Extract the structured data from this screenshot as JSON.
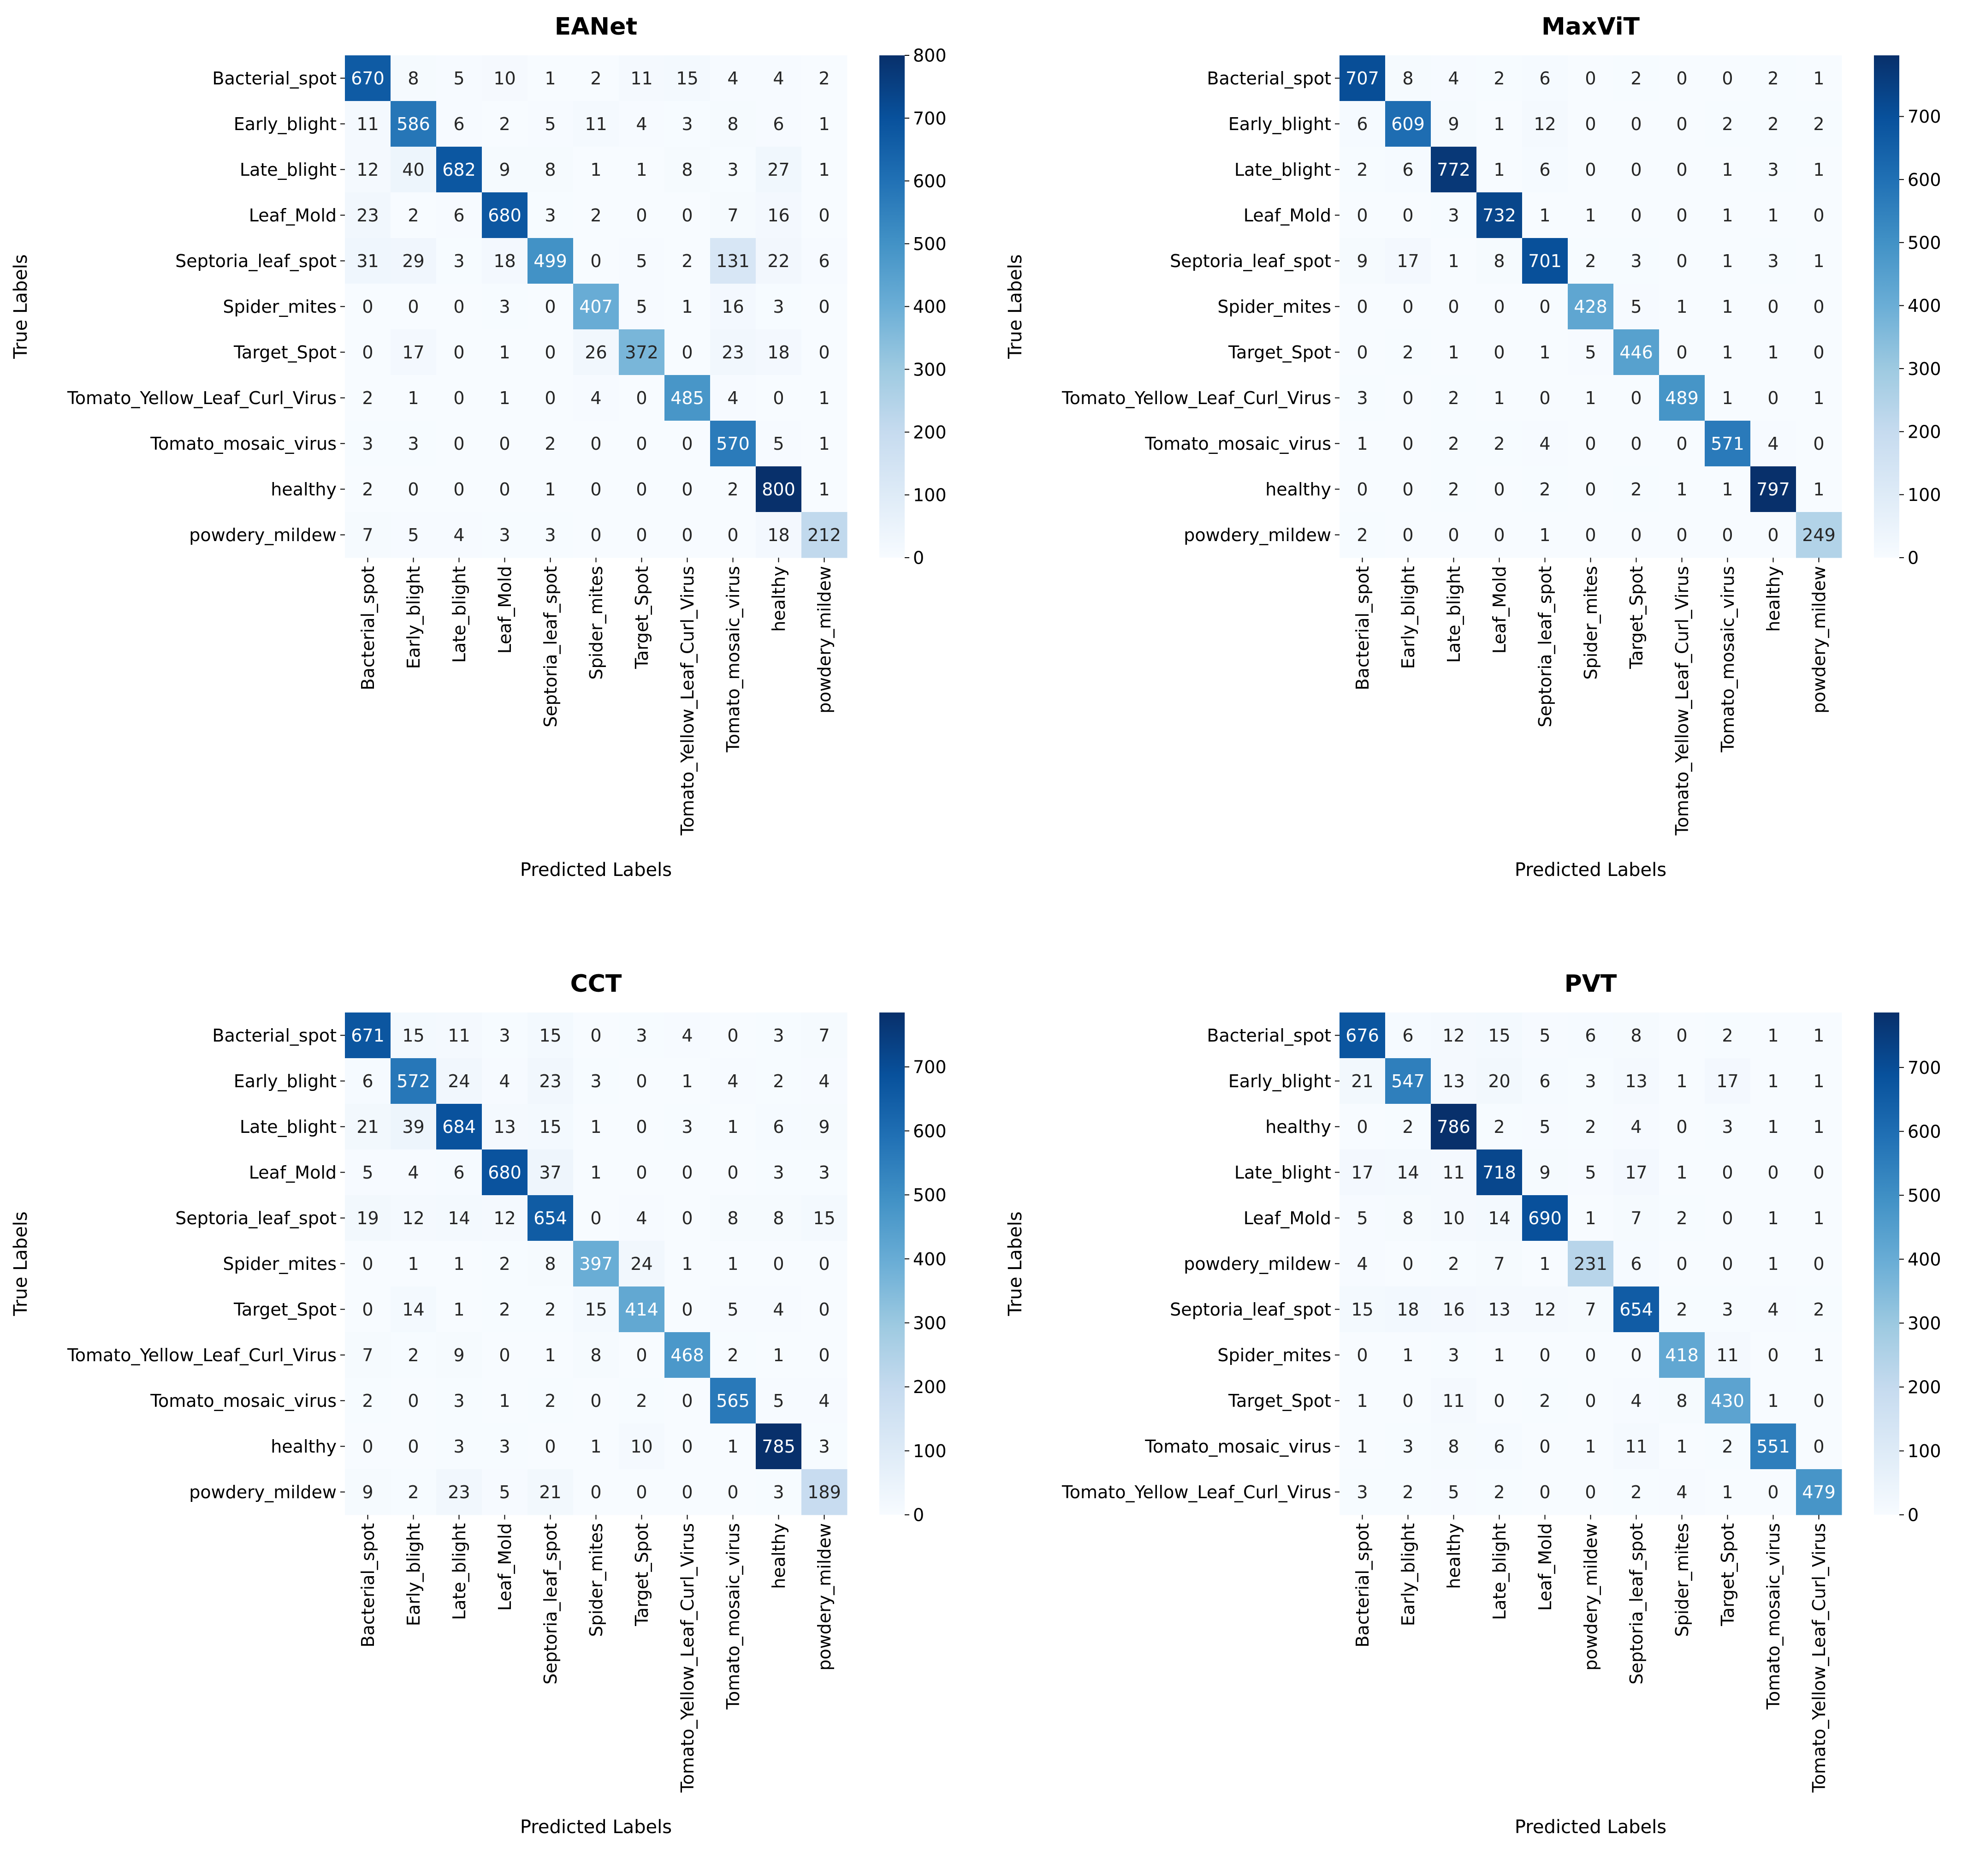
{
  "chart_data": [
    {
      "type": "heatmap",
      "title": "EANet",
      "xlabel": "Predicted Labels",
      "ylabel": "True Labels",
      "row_labels": [
        "Bacterial_spot",
        "Early_blight",
        "Late_blight",
        "Leaf_Mold",
        "Septoria_leaf_spot",
        "Spider_mites",
        "Target_Spot",
        "Tomato_Yellow_Leaf_Curl_Virus",
        "Tomato_mosaic_virus",
        "healthy",
        "powdery_mildew"
      ],
      "col_labels": [
        "Bacterial_spot",
        "Early_blight",
        "Late_blight",
        "Leaf_Mold",
        "Septoria_leaf_spot",
        "Spider_mites",
        "Target_Spot",
        "Tomato_Yellow_Leaf_Curl_Virus",
        "Tomato_mosaic_virus",
        "healthy",
        "powdery_mildew"
      ],
      "matrix": [
        [
          670,
          8,
          5,
          10,
          1,
          2,
          11,
          15,
          4,
          4,
          2
        ],
        [
          11,
          586,
          6,
          2,
          5,
          11,
          4,
          3,
          8,
          6,
          1
        ],
        [
          12,
          40,
          682,
          9,
          8,
          1,
          1,
          8,
          3,
          27,
          1
        ],
        [
          23,
          2,
          6,
          680,
          3,
          2,
          0,
          0,
          7,
          16,
          0
        ],
        [
          31,
          29,
          3,
          18,
          499,
          0,
          5,
          2,
          131,
          22,
          6
        ],
        [
          0,
          0,
          0,
          3,
          0,
          407,
          5,
          1,
          16,
          3,
          0
        ],
        [
          0,
          17,
          0,
          1,
          0,
          26,
          372,
          0,
          23,
          18,
          0
        ],
        [
          2,
          1,
          0,
          1,
          0,
          4,
          0,
          485,
          4,
          0,
          1
        ],
        [
          3,
          3,
          0,
          0,
          2,
          0,
          0,
          0,
          570,
          5,
          1
        ],
        [
          2,
          0,
          0,
          0,
          1,
          0,
          0,
          0,
          2,
          800,
          1
        ],
        [
          7,
          5,
          4,
          3,
          3,
          0,
          0,
          0,
          0,
          18,
          212
        ]
      ],
      "colorbar": {
        "vmin": 0,
        "vmax": 800,
        "ticks": [
          0,
          100,
          200,
          300,
          400,
          500,
          600,
          700,
          800
        ]
      }
    },
    {
      "type": "heatmap",
      "title": "MaxViT",
      "xlabel": "Predicted Labels",
      "ylabel": "True Labels",
      "row_labels": [
        "Bacterial_spot",
        "Early_blight",
        "Late_blight",
        "Leaf_Mold",
        "Septoria_leaf_spot",
        "Spider_mites",
        "Target_Spot",
        "Tomato_Yellow_Leaf_Curl_Virus",
        "Tomato_mosaic_virus",
        "healthy",
        "powdery_mildew"
      ],
      "col_labels": [
        "Bacterial_spot",
        "Early_blight",
        "Late_blight",
        "Leaf_Mold",
        "Septoria_leaf_spot",
        "Spider_mites",
        "Target_Spot",
        "Tomato_Yellow_Leaf_Curl_Virus",
        "Tomato_mosaic_virus",
        "healthy",
        "powdery_mildew"
      ],
      "matrix": [
        [
          707,
          8,
          4,
          2,
          6,
          0,
          2,
          0,
          0,
          2,
          1
        ],
        [
          6,
          609,
          9,
          1,
          12,
          0,
          0,
          0,
          2,
          2,
          2
        ],
        [
          2,
          6,
          772,
          1,
          6,
          0,
          0,
          0,
          1,
          3,
          1
        ],
        [
          0,
          0,
          3,
          732,
          1,
          1,
          0,
          0,
          1,
          1,
          0
        ],
        [
          9,
          17,
          1,
          8,
          701,
          2,
          3,
          0,
          1,
          3,
          1
        ],
        [
          0,
          0,
          0,
          0,
          0,
          428,
          5,
          1,
          1,
          0,
          0
        ],
        [
          0,
          2,
          1,
          0,
          1,
          5,
          446,
          0,
          1,
          1,
          0
        ],
        [
          3,
          0,
          2,
          1,
          0,
          1,
          0,
          489,
          1,
          0,
          1
        ],
        [
          1,
          0,
          2,
          2,
          4,
          0,
          0,
          0,
          571,
          4,
          0
        ],
        [
          0,
          0,
          2,
          0,
          2,
          0,
          2,
          1,
          1,
          797,
          1
        ],
        [
          2,
          0,
          0,
          0,
          1,
          0,
          0,
          0,
          0,
          0,
          249
        ]
      ],
      "colorbar": {
        "vmin": 0,
        "vmax": 797,
        "ticks": [
          0,
          100,
          200,
          300,
          400,
          500,
          600,
          700
        ]
      }
    },
    {
      "type": "heatmap",
      "title": "CCT",
      "xlabel": "Predicted Labels",
      "ylabel": "True Labels",
      "row_labels": [
        "Bacterial_spot",
        "Early_blight",
        "Late_blight",
        "Leaf_Mold",
        "Septoria_leaf_spot",
        "Spider_mites",
        "Target_Spot",
        "Tomato_Yellow_Leaf_Curl_Virus",
        "Tomato_mosaic_virus",
        "healthy",
        "powdery_mildew"
      ],
      "col_labels": [
        "Bacterial_spot",
        "Early_blight",
        "Late_blight",
        "Leaf_Mold",
        "Septoria_leaf_spot",
        "Spider_mites",
        "Target_Spot",
        "Tomato_Yellow_Leaf_Curl_Virus",
        "Tomato_mosaic_virus",
        "healthy",
        "powdery_mildew"
      ],
      "matrix": [
        [
          671,
          15,
          11,
          3,
          15,
          0,
          3,
          4,
          0,
          3,
          7
        ],
        [
          6,
          572,
          24,
          4,
          23,
          3,
          0,
          1,
          4,
          2,
          4
        ],
        [
          21,
          39,
          684,
          13,
          15,
          1,
          0,
          3,
          1,
          6,
          9
        ],
        [
          5,
          4,
          6,
          680,
          37,
          1,
          0,
          0,
          0,
          3,
          3
        ],
        [
          19,
          12,
          14,
          12,
          654,
          0,
          4,
          0,
          8,
          8,
          15
        ],
        [
          0,
          1,
          1,
          2,
          8,
          397,
          24,
          1,
          1,
          0,
          0
        ],
        [
          0,
          14,
          1,
          2,
          2,
          15,
          414,
          0,
          5,
          4,
          0
        ],
        [
          7,
          2,
          9,
          0,
          1,
          8,
          0,
          468,
          2,
          1,
          0
        ],
        [
          2,
          0,
          3,
          1,
          2,
          0,
          2,
          0,
          565,
          5,
          4
        ],
        [
          0,
          0,
          3,
          3,
          0,
          1,
          10,
          0,
          1,
          785,
          3
        ],
        [
          9,
          2,
          23,
          5,
          21,
          0,
          0,
          0,
          0,
          3,
          189
        ]
      ],
      "colorbar": {
        "vmin": 0,
        "vmax": 785,
        "ticks": [
          0,
          100,
          200,
          300,
          400,
          500,
          600,
          700
        ]
      }
    },
    {
      "type": "heatmap",
      "title": "PVT",
      "xlabel": "Predicted Labels",
      "ylabel": "True Labels",
      "row_labels": [
        "Bacterial_spot",
        "Early_blight",
        "healthy",
        "Late_blight",
        "Leaf_Mold",
        "powdery_mildew",
        "Septoria_leaf_spot",
        "Spider_mites",
        "Target_Spot",
        "Tomato_mosaic_virus",
        "Tomato_Yellow_Leaf_Curl_Virus"
      ],
      "col_labels": [
        "Bacterial_spot",
        "Early_blight",
        "healthy",
        "Late_blight",
        "Leaf_Mold",
        "powdery_mildew",
        "Septoria_leaf_spot",
        "Spider_mites",
        "Target_Spot",
        "Tomato_mosaic_virus",
        "Tomato_Yellow_Leaf_Curl_Virus"
      ],
      "matrix": [
        [
          676,
          6,
          12,
          15,
          5,
          6,
          8,
          0,
          2,
          1,
          1
        ],
        [
          21,
          547,
          13,
          20,
          6,
          3,
          13,
          1,
          17,
          1,
          1
        ],
        [
          0,
          2,
          786,
          2,
          5,
          2,
          4,
          0,
          3,
          1,
          1
        ],
        [
          17,
          14,
          11,
          718,
          9,
          5,
          17,
          1,
          0,
          0,
          0
        ],
        [
          5,
          8,
          10,
          14,
          690,
          1,
          7,
          2,
          0,
          1,
          1
        ],
        [
          4,
          0,
          2,
          7,
          1,
          231,
          6,
          0,
          0,
          1,
          0
        ],
        [
          15,
          18,
          16,
          13,
          12,
          7,
          654,
          2,
          3,
          4,
          2
        ],
        [
          0,
          1,
          3,
          1,
          0,
          0,
          0,
          418,
          11,
          0,
          1
        ],
        [
          1,
          0,
          11,
          0,
          2,
          0,
          4,
          8,
          430,
          1,
          0
        ],
        [
          1,
          3,
          8,
          6,
          0,
          1,
          11,
          1,
          2,
          551,
          0
        ],
        [
          3,
          2,
          5,
          2,
          0,
          0,
          2,
          4,
          1,
          0,
          479
        ]
      ],
      "colorbar": {
        "vmin": 0,
        "vmax": 786,
        "ticks": [
          0,
          100,
          200,
          300,
          400,
          500,
          600,
          700
        ]
      }
    }
  ]
}
